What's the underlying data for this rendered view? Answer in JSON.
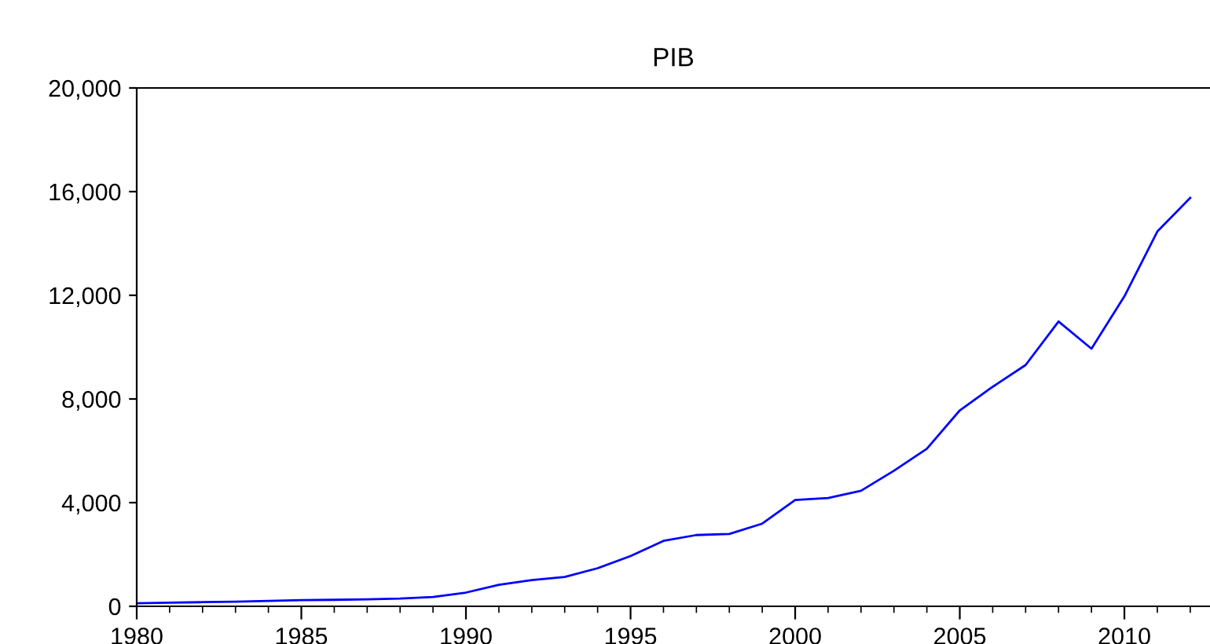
{
  "chart_data": {
    "type": "line",
    "title": "PIB",
    "x": [
      1980,
      1981,
      1982,
      1983,
      1984,
      1985,
      1986,
      1987,
      1988,
      1989,
      1990,
      1991,
      1992,
      1993,
      1994,
      1995,
      1996,
      1997,
      1998,
      1999,
      2000,
      2001,
      2002,
      2003,
      2004,
      2005,
      2006,
      2007,
      2008,
      2009,
      2010,
      2011,
      2012
    ],
    "series": [
      {
        "color": "#0000ff",
        "values": [
          120,
          140,
          160,
          180,
          210,
          240,
          250,
          270,
          300,
          360,
          530,
          830,
          1010,
          1130,
          1470,
          1940,
          2525,
          2750,
          2790,
          3190,
          4100,
          4180,
          4460,
          5230,
          6080,
          7560,
          8470,
          9310,
          10990,
          9940,
          11960,
          14460,
          15760
        ]
      }
    ],
    "xlim": [
      1980,
      2012.6
    ],
    "xticks": [
      1980,
      1985,
      1990,
      1995,
      2000,
      2005,
      2010
    ],
    "ylim": [
      0,
      20000
    ],
    "yticks": [
      {
        "value": 0,
        "label": "0"
      },
      {
        "value": 4000,
        "label": "4,000"
      },
      {
        "value": 8000,
        "label": "8,000"
      },
      {
        "value": 12000,
        "label": "12,000"
      },
      {
        "value": 16000,
        "label": "16,000"
      },
      {
        "value": 20000,
        "label": "20,000"
      }
    ],
    "grid": false,
    "legend": false,
    "marker": "none",
    "line_style": "solid"
  }
}
